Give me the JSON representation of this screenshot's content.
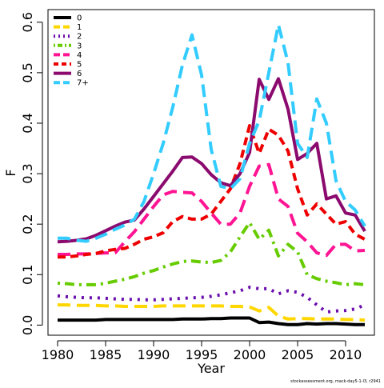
{
  "chart_data": {
    "type": "line",
    "xlabel": "Year",
    "ylabel": "F",
    "xlim": [
      1979,
      2013
    ],
    "ylim": [
      -0.02,
      0.625
    ],
    "x_ticks": [
      1980,
      1985,
      1990,
      1995,
      2000,
      2005,
      2010
    ],
    "y_ticks": [
      0.0,
      0.1,
      0.2,
      0.3,
      0.4,
      0.5,
      0.6
    ],
    "y_tick_labels": [
      "0.0",
      "0.1",
      "0.2",
      "0.3",
      "0.4",
      "0.5",
      "0.6"
    ],
    "grid": false,
    "legend_position": "top-left",
    "x": [
      1980,
      1981,
      1982,
      1983,
      1984,
      1985,
      1986,
      1987,
      1988,
      1989,
      1990,
      1991,
      1992,
      1993,
      1994,
      1995,
      1996,
      1997,
      1998,
      1999,
      2000,
      2001,
      2002,
      2003,
      2004,
      2005,
      2006,
      2007,
      2008,
      2009,
      2010,
      2011,
      2012
    ],
    "series": [
      {
        "name": "0",
        "color": "#000000",
        "dash": "solid",
        "values": [
          0.01,
          0.01,
          0.01,
          0.01,
          0.01,
          0.011,
          0.011,
          0.011,
          0.011,
          0.011,
          0.011,
          0.011,
          0.011,
          0.012,
          0.012,
          0.012,
          0.013,
          0.013,
          0.014,
          0.014,
          0.014,
          0.005,
          0.006,
          0.003,
          0.001,
          0.001,
          0.003,
          0.002,
          0.003,
          0.003,
          0.002,
          0.001,
          0.001
        ]
      },
      {
        "name": "1",
        "color": "#ffd700",
        "dash": "longdash",
        "values": [
          0.04,
          0.04,
          0.039,
          0.039,
          0.039,
          0.038,
          0.038,
          0.037,
          0.037,
          0.037,
          0.037,
          0.038,
          0.038,
          0.038,
          0.038,
          0.038,
          0.038,
          0.038,
          0.037,
          0.037,
          0.036,
          0.028,
          0.035,
          0.018,
          0.012,
          0.013,
          0.013,
          0.012,
          0.012,
          0.012,
          0.011,
          0.011,
          0.01
        ]
      },
      {
        "name": "2",
        "color": "#6a0dad",
        "dash": "dot",
        "values": [
          0.058,
          0.056,
          0.055,
          0.054,
          0.054,
          0.053,
          0.052,
          0.051,
          0.051,
          0.05,
          0.05,
          0.051,
          0.052,
          0.053,
          0.054,
          0.055,
          0.057,
          0.06,
          0.064,
          0.068,
          0.075,
          0.072,
          0.072,
          0.062,
          0.068,
          0.065,
          0.055,
          0.04,
          0.026,
          0.028,
          0.029,
          0.032,
          0.04
        ]
      },
      {
        "name": "3",
        "color": "#66cc00",
        "dash": "dotdash",
        "values": [
          0.083,
          0.082,
          0.08,
          0.08,
          0.08,
          0.083,
          0.087,
          0.091,
          0.096,
          0.103,
          0.108,
          0.115,
          0.121,
          0.126,
          0.127,
          0.125,
          0.124,
          0.128,
          0.145,
          0.175,
          0.203,
          0.17,
          0.188,
          0.137,
          0.16,
          0.145,
          0.1,
          0.092,
          0.087,
          0.084,
          0.08,
          0.082,
          0.08
        ]
      },
      {
        "name": "4",
        "color": "#ff1493",
        "dash": "longdash",
        "values": [
          0.14,
          0.14,
          0.141,
          0.141,
          0.142,
          0.143,
          0.143,
          0.165,
          0.185,
          0.21,
          0.235,
          0.258,
          0.265,
          0.263,
          0.262,
          0.245,
          0.222,
          0.2,
          0.2,
          0.222,
          0.275,
          0.315,
          0.318,
          0.25,
          0.235,
          0.182,
          0.165,
          0.143,
          0.138,
          0.16,
          0.16,
          0.147,
          0.148
        ]
      },
      {
        "name": "5",
        "color": "#ee0000",
        "dash": "dash",
        "values": [
          0.135,
          0.135,
          0.137,
          0.14,
          0.142,
          0.147,
          0.15,
          0.152,
          0.16,
          0.17,
          0.175,
          0.183,
          0.205,
          0.215,
          0.21,
          0.21,
          0.22,
          0.245,
          0.27,
          0.32,
          0.395,
          0.34,
          0.388,
          0.376,
          0.345,
          0.27,
          0.218,
          0.24,
          0.22,
          0.2,
          0.205,
          0.18,
          0.17
        ]
      },
      {
        "name": "6",
        "color": "#8b0a6e",
        "dash": "solid",
        "values": [
          0.165,
          0.166,
          0.168,
          0.171,
          0.178,
          0.187,
          0.196,
          0.204,
          0.208,
          0.23,
          0.255,
          0.28,
          0.305,
          0.332,
          0.333,
          0.32,
          0.298,
          0.282,
          0.276,
          0.3,
          0.342,
          0.487,
          0.447,
          0.488,
          0.428,
          0.328,
          0.34,
          0.36,
          0.25,
          0.256,
          0.222,
          0.218,
          0.186
        ]
      },
      {
        "name": "7+",
        "color": "#33ccff",
        "dash": "longdash",
        "values": [
          0.172,
          0.172,
          0.168,
          0.166,
          0.172,
          0.18,
          0.19,
          0.198,
          0.21,
          0.245,
          0.3,
          0.36,
          0.432,
          0.515,
          0.575,
          0.495,
          0.348,
          0.275,
          0.27,
          0.29,
          0.36,
          0.405,
          0.5,
          0.595,
          0.52,
          0.36,
          0.332,
          0.448,
          0.4,
          0.286,
          0.245,
          0.228,
          0.196
        ]
      }
    ],
    "annotations": [
      "stockassessment.org, mack-day5-1-l3, r2941"
    ]
  }
}
